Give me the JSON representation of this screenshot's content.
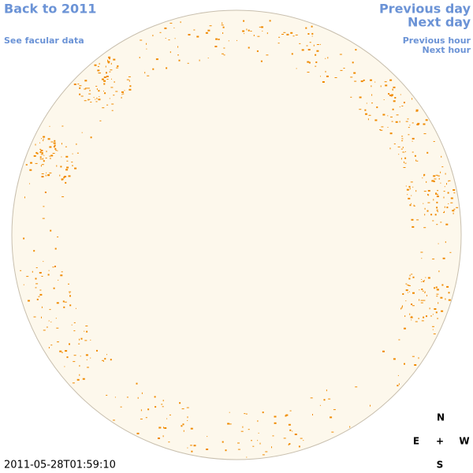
{
  "nav": {
    "back": "Back to 2011",
    "facular": "See facular data",
    "previous_day": "Previous day",
    "next_day": "Next day",
    "previous_hour": "Previous hour",
    "next_hour": "Next hour"
  },
  "compass": {
    "north": "N",
    "east": "E",
    "center": "+",
    "west": "W",
    "south": "S"
  },
  "timestamp": "2011-05-28T01:59:10"
}
